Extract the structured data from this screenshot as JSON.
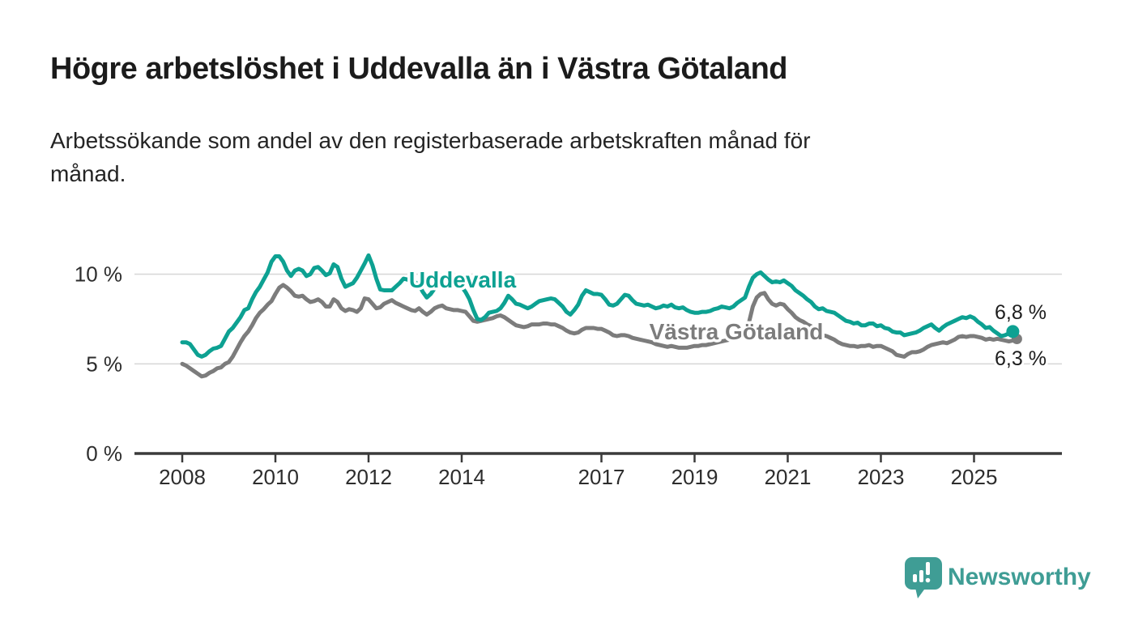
{
  "header": {
    "title": "Högre arbetslöshet i Uddevalla än i Västra Götaland",
    "subtitle": "Arbetssökande som andel av den registerbaserade arbetskraften månad för månad."
  },
  "branding": {
    "name": "Newsworthy",
    "color": "#3f9d95"
  },
  "colors": {
    "accent_teal": "#0da192",
    "series_gray": "#7c7c7c",
    "axis": "#3a3a3a",
    "gridline": "#d9d9d9",
    "text_dark": "#1d1d1d"
  },
  "chart_data": {
    "type": "line",
    "title": "Högre arbetslöshet i Uddevalla än i Västra Götaland",
    "subtitle": "Arbetssökande som andel av den registerbaserade arbetskraften månad för månad.",
    "unit": "%",
    "frequency": "monthly",
    "start_period": "2008-01",
    "end_period": "2025-11",
    "grid": "horizontal-only",
    "legend_position": "inline-labels-on-lines",
    "x_axis": {
      "tick_years": [
        2008,
        2010,
        2012,
        2014,
        2017,
        2019,
        2021,
        2023,
        2025
      ],
      "tick_labels": [
        "2008",
        "2010",
        "2012",
        "2014",
        "2017",
        "2019",
        "2021",
        "2023",
        "2025"
      ]
    },
    "y_axis": {
      "tick_values": [
        0,
        5,
        10
      ],
      "tick_labels": [
        "0 %",
        "5 %",
        "10 %"
      ],
      "gridline_values": [
        5,
        10
      ],
      "range": [
        0,
        11.6
      ]
    },
    "series": [
      {
        "name": "Västra Götaland",
        "color": "#7c7c7c",
        "end_label": "6,3 %",
        "end_value": 6.3,
        "values": [
          5.0,
          4.9,
          4.75,
          4.6,
          4.45,
          4.3,
          4.35,
          4.5,
          4.6,
          4.75,
          4.8,
          5.0,
          5.1,
          5.4,
          5.8,
          6.2,
          6.55,
          6.8,
          7.15,
          7.55,
          7.85,
          8.05,
          8.3,
          8.5,
          8.9,
          9.25,
          9.4,
          9.25,
          9.05,
          8.8,
          8.75,
          8.8,
          8.6,
          8.45,
          8.5,
          8.6,
          8.45,
          8.2,
          8.2,
          8.6,
          8.45,
          8.1,
          7.95,
          8.05,
          8.0,
          7.9,
          8.1,
          8.65,
          8.6,
          8.35,
          8.1,
          8.15,
          8.35,
          8.45,
          8.55,
          8.4,
          8.3,
          8.2,
          8.1,
          8.0,
          7.95,
          8.1,
          7.9,
          7.75,
          7.9,
          8.1,
          8.2,
          8.25,
          8.1,
          8.05,
          8.0,
          8.0,
          7.95,
          7.9,
          7.65,
          7.4,
          7.35,
          7.4,
          7.45,
          7.5,
          7.55,
          7.65,
          7.7,
          7.6,
          7.45,
          7.3,
          7.15,
          7.1,
          7.05,
          7.1,
          7.2,
          7.2,
          7.2,
          7.25,
          7.25,
          7.2,
          7.2,
          7.1,
          7.0,
          6.85,
          6.75,
          6.7,
          6.75,
          6.9,
          7.0,
          7.0,
          7.0,
          6.95,
          6.95,
          6.85,
          6.75,
          6.6,
          6.55,
          6.6,
          6.6,
          6.55,
          6.45,
          6.4,
          6.35,
          6.3,
          6.25,
          6.2,
          6.1,
          6.05,
          6.0,
          5.95,
          6.0,
          5.95,
          5.9,
          5.9,
          5.9,
          5.95,
          6.0,
          6.0,
          6.05,
          6.05,
          6.1,
          6.15,
          6.2,
          6.25,
          6.3,
          6.35,
          6.45,
          6.6,
          6.7,
          6.8,
          7.3,
          8.2,
          8.7,
          8.9,
          8.95,
          8.6,
          8.35,
          8.25,
          8.35,
          8.3,
          8.05,
          7.85,
          7.6,
          7.45,
          7.35,
          7.2,
          7.1,
          6.9,
          6.75,
          6.6,
          6.55,
          6.45,
          6.35,
          6.2,
          6.1,
          6.05,
          6.0,
          6.0,
          5.95,
          6.0,
          6.0,
          6.05,
          5.95,
          6.0,
          6.0,
          5.9,
          5.8,
          5.7,
          5.5,
          5.45,
          5.4,
          5.55,
          5.65,
          5.65,
          5.7,
          5.8,
          5.95,
          6.05,
          6.1,
          6.15,
          6.2,
          6.15,
          6.25,
          6.35,
          6.5,
          6.55,
          6.5,
          6.55,
          6.55,
          6.5,
          6.45,
          6.35,
          6.4,
          6.35,
          6.4,
          6.35,
          6.3,
          6.25,
          6.3
        ]
      },
      {
        "name": "Uddevalla",
        "color": "#0da192",
        "end_label": "6,8 %",
        "end_value": 6.8,
        "values": [
          6.2,
          6.2,
          6.1,
          5.8,
          5.5,
          5.4,
          5.5,
          5.7,
          5.85,
          5.9,
          6.0,
          6.4,
          6.8,
          7.0,
          7.3,
          7.6,
          8.0,
          8.1,
          8.6,
          9.0,
          9.3,
          9.7,
          10.1,
          10.7,
          11.0,
          11.0,
          10.7,
          10.2,
          9.9,
          10.2,
          10.3,
          10.2,
          9.9,
          10.0,
          10.35,
          10.4,
          10.2,
          9.95,
          10.05,
          10.55,
          10.4,
          9.75,
          9.3,
          9.4,
          9.5,
          9.8,
          10.2,
          10.6,
          11.05,
          10.5,
          9.75,
          9.15,
          9.1,
          9.1,
          9.1,
          9.3,
          9.5,
          9.75,
          9.7,
          9.6,
          9.55,
          9.4,
          9.0,
          8.7,
          8.9,
          9.2,
          9.6,
          9.65,
          9.5,
          9.4,
          9.45,
          9.5,
          9.3,
          9.0,
          8.6,
          8.0,
          7.5,
          7.45,
          7.6,
          7.85,
          7.9,
          7.95,
          8.1,
          8.4,
          8.8,
          8.6,
          8.35,
          8.3,
          8.2,
          8.1,
          8.2,
          8.35,
          8.5,
          8.55,
          8.6,
          8.65,
          8.6,
          8.4,
          8.2,
          7.9,
          7.75,
          8.0,
          8.3,
          8.8,
          9.1,
          9.0,
          8.9,
          8.9,
          8.85,
          8.6,
          8.3,
          8.25,
          8.35,
          8.6,
          8.85,
          8.8,
          8.55,
          8.35,
          8.3,
          8.25,
          8.3,
          8.2,
          8.1,
          8.15,
          8.25,
          8.2,
          8.3,
          8.15,
          8.1,
          8.15,
          8.0,
          7.9,
          7.85,
          7.85,
          7.9,
          7.9,
          7.95,
          8.05,
          8.1,
          8.2,
          8.15,
          8.1,
          8.2,
          8.4,
          8.55,
          8.7,
          9.3,
          9.8,
          10.0,
          10.1,
          9.9,
          9.7,
          9.55,
          9.6,
          9.55,
          9.65,
          9.5,
          9.35,
          9.1,
          8.95,
          8.8,
          8.6,
          8.45,
          8.2,
          8.05,
          8.1,
          7.95,
          7.9,
          7.85,
          7.7,
          7.55,
          7.4,
          7.35,
          7.25,
          7.3,
          7.15,
          7.15,
          7.25,
          7.25,
          7.1,
          7.15,
          7.0,
          6.95,
          6.8,
          6.75,
          6.75,
          6.6,
          6.65,
          6.7,
          6.75,
          6.85,
          7.0,
          7.1,
          7.2,
          7.0,
          6.85,
          7.05,
          7.2,
          7.3,
          7.4,
          7.5,
          7.6,
          7.55,
          7.65,
          7.55,
          7.35,
          7.2,
          7.0,
          7.05,
          6.85,
          6.7,
          6.55,
          6.6,
          6.7,
          6.8
        ]
      }
    ]
  }
}
